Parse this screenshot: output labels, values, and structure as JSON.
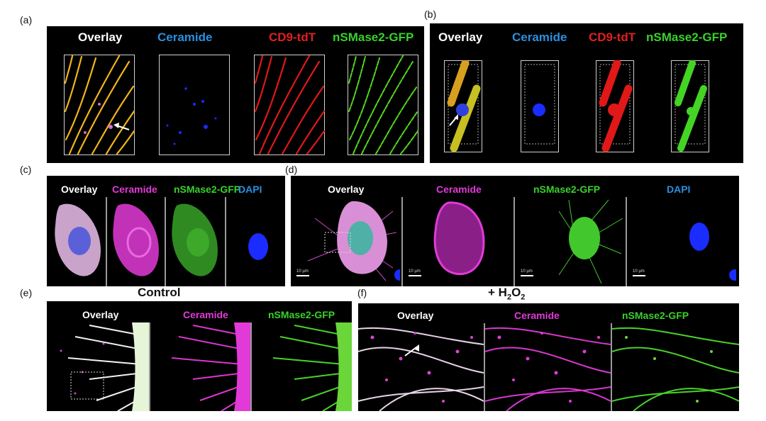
{
  "panel_a": {
    "label": "(a)",
    "titles": [
      "Overlay",
      "Ceramide",
      "CD9-tdT",
      "nSMase2-GFP"
    ]
  },
  "panel_b": {
    "label": "(b)",
    "titles": [
      "Overlay",
      "Ceramide",
      "CD9-tdT",
      "nSMase2-GFP"
    ]
  },
  "panel_c": {
    "label": "(c)",
    "titles": [
      "Overlay",
      "Ceramide",
      "nSMase2-GFP",
      "DAPI"
    ]
  },
  "panel_d": {
    "label": "(d)",
    "titles": [
      "Overlay",
      "Ceramide",
      "nSMase2-GFP",
      "DAPI"
    ],
    "scale": "10 µm"
  },
  "panel_e": {
    "label": "(e)",
    "heading": "Control",
    "titles": [
      "Overlay",
      "Ceramide",
      "nSMase2-GFP"
    ]
  },
  "panel_f": {
    "label": "(f)",
    "heading_prefix": "+ H",
    "heading_sub": "2",
    "heading_mid": "O",
    "heading_sub2": "2",
    "titles": [
      "Overlay",
      "Ceramide",
      "nSMase2-GFP"
    ]
  },
  "colors": {
    "overlay": "#ffffff",
    "ceramide_blue": "#2b8fe0",
    "cd9": "#e02020",
    "nsmase2": "#39d12b",
    "ceramide_magenta": "#e23ad8"
  }
}
